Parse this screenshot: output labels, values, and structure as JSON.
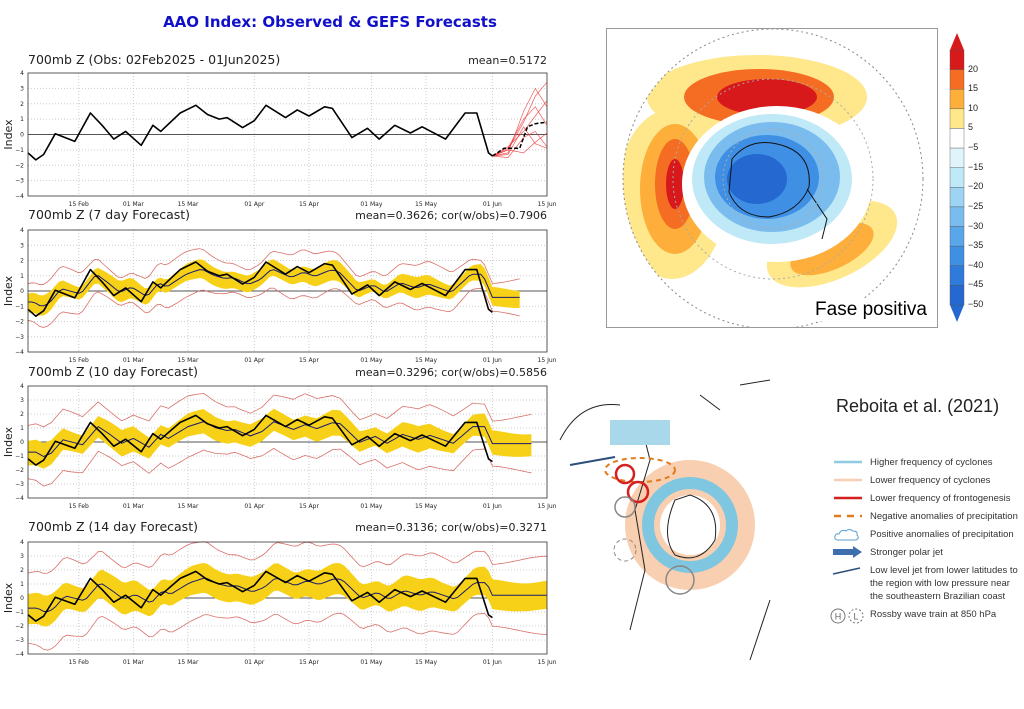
{
  "title": "AAO Index: Observed & GEFS Forecasts",
  "colors": {
    "title": "#1010c8",
    "observed": "#000000",
    "ens_mean": "#1a1a6e",
    "band": "#f7d117",
    "spread": "#d9706a",
    "member": "#ee3333"
  },
  "chart_data": [
    {
      "type": "line",
      "title": "700mb Z (Obs: 02Feb2025 - 01Jun2025)",
      "stat": "mean=0.5172",
      "ylabel": "Index",
      "ylim": [
        -4,
        4
      ],
      "xlim": [
        "2025-02-02",
        "2025-06-15"
      ],
      "grid": true,
      "yticks": [
        "4",
        "3",
        "2",
        "1",
        "0",
        "−1",
        "−2",
        "−3",
        "−4"
      ],
      "xticks": [
        [
          "2025-02-15",
          "15 Feb"
        ],
        [
          "2025-03-01",
          "01 Mar"
        ],
        [
          "2025-03-15",
          "15 Mar"
        ],
        [
          "2025-04-01",
          "01 Apr"
        ],
        [
          "2025-04-15",
          "15 Apr"
        ],
        [
          "2025-05-01",
          "01 May"
        ],
        [
          "2025-05-15",
          "15 May"
        ],
        [
          "2025-06-01",
          "01 Jun"
        ],
        [
          "2025-06-15",
          "15 Jun"
        ]
      ],
      "ensemble_mean": {
        "x": [
          "2025-06-01",
          "2025-06-04",
          "2025-06-08",
          "2025-06-10",
          "2025-06-12",
          "2025-06-15"
        ],
        "y": [
          -1.4,
          -0.9,
          -0.9,
          0.5,
          0.7,
          0.8
        ]
      },
      "members": [
        {
          "x": [
            "2025-06-01",
            "2025-06-05",
            "2025-06-09",
            "2025-06-12",
            "2025-06-15"
          ],
          "y": [
            -1.4,
            -1.0,
            0.8,
            2.5,
            3.4
          ]
        },
        {
          "x": [
            "2025-06-01",
            "2025-06-05",
            "2025-06-09",
            "2025-06-12",
            "2025-06-15"
          ],
          "y": [
            -1.4,
            -1.2,
            1.5,
            3.0,
            1.8
          ]
        },
        {
          "x": [
            "2025-06-01",
            "2025-06-05",
            "2025-06-09",
            "2025-06-12",
            "2025-06-15"
          ],
          "y": [
            -1.4,
            -0.8,
            0.2,
            1.2,
            2.2
          ]
        },
        {
          "x": [
            "2025-06-01",
            "2025-06-05",
            "2025-06-09",
            "2025-06-12",
            "2025-06-15"
          ],
          "y": [
            -1.4,
            -1.5,
            -0.2,
            0.2,
            -0.8
          ]
        },
        {
          "x": [
            "2025-06-01",
            "2025-06-05",
            "2025-06-09",
            "2025-06-12",
            "2025-06-15"
          ],
          "y": [
            -1.4,
            -1.0,
            -1.2,
            -0.5,
            0.1
          ]
        },
        {
          "x": [
            "2025-06-01",
            "2025-06-05",
            "2025-06-09",
            "2025-06-12",
            "2025-06-15"
          ],
          "y": [
            -1.4,
            -1.3,
            0.5,
            -0.6,
            -0.9
          ]
        },
        {
          "x": [
            "2025-06-01",
            "2025-06-05",
            "2025-06-09",
            "2025-06-12",
            "2025-06-15"
          ],
          "y": [
            -1.4,
            -0.9,
            1.0,
            1.8,
            0.6
          ]
        }
      ]
    },
    {
      "type": "line",
      "title": "700mb Z (7 day Forecast)",
      "stat": "mean=0.3626; cor(w/obs)=0.7906",
      "ylabel": "Index",
      "ylim": [
        -4,
        4
      ],
      "forecast_end": "2025-06-08",
      "band_halfwidth": 0.55,
      "spread_halfwidth": 1.2,
      "lag_days": 3
    },
    {
      "type": "line",
      "title": "700mb Z (10 day Forecast)",
      "stat": "mean=0.3296; cor(w/obs)=0.5856",
      "ylabel": "Index",
      "ylim": [
        -4,
        4
      ],
      "forecast_end": "2025-06-11",
      "band_halfwidth": 0.8,
      "spread_halfwidth": 1.9,
      "lag_days": 4
    },
    {
      "type": "line",
      "title": "700mb Z (14 day Forecast)",
      "stat": "mean=0.3136; cor(w/obs)=0.3271",
      "ylabel": "Index",
      "ylim": [
        -4,
        4
      ],
      "forecast_end": "2025-06-15",
      "band_halfwidth": 1.0,
      "spread_halfwidth": 2.5,
      "lag_days": 5
    }
  ],
  "observed": {
    "x": [
      "2025-02-02",
      "2025-02-04",
      "2025-02-06",
      "2025-02-09",
      "2025-02-14",
      "2025-02-18",
      "2025-02-21",
      "2025-02-24",
      "2025-02-27",
      "2025-03-03",
      "2025-03-06",
      "2025-03-08",
      "2025-03-13",
      "2025-03-17",
      "2025-03-20",
      "2025-03-23",
      "2025-03-25",
      "2025-03-29",
      "2025-04-01",
      "2025-04-04",
      "2025-04-09",
      "2025-04-12",
      "2025-04-15",
      "2025-04-19",
      "2025-04-21",
      "2025-04-26",
      "2025-04-30",
      "2025-05-03",
      "2025-05-07",
      "2025-05-11",
      "2025-05-14",
      "2025-05-20",
      "2025-05-25",
      "2025-05-28",
      "2025-05-31",
      "2025-06-01"
    ],
    "y": [
      -1.2,
      -1.65,
      -1.3,
      0.05,
      -0.45,
      1.4,
      0.6,
      -0.3,
      0.2,
      -0.7,
      0.6,
      0.2,
      1.4,
      1.9,
      1.3,
      1.0,
      1.1,
      0.45,
      0.9,
      1.9,
      1.1,
      1.6,
      1.2,
      1.8,
      1.7,
      -0.2,
      0.4,
      -0.3,
      0.6,
      0.1,
      0.5,
      -0.3,
      1.4,
      1.4,
      -1.2,
      -1.4
    ]
  },
  "map1": {
    "label": "Fase positiva",
    "colorbar_ticks": [
      "20",
      "15",
      "10",
      "5",
      "−5",
      "−15",
      "−20",
      "−25",
      "−30",
      "−35",
      "−40",
      "−45",
      "−50"
    ],
    "colorbar_colors": [
      "#d7191c",
      "#f46d23",
      "#fdae3b",
      "#fee88b",
      "#ffffff",
      "#e0f5fb",
      "#bfe9f7",
      "#9cd4f2",
      "#7bbcee",
      "#5aa6ea",
      "#3f8fe4",
      "#2f7bdc",
      "#2468d0"
    ]
  },
  "map2": {
    "citation": "Reboita et al. (2021)",
    "legend": [
      {
        "icon": "light-blue-line",
        "label": "Higher frequency of cyclones"
      },
      {
        "icon": "peach-line",
        "label": "Lower frequency of cyclones"
      },
      {
        "icon": "red-line",
        "label": "Lower frequency of frontogenesis"
      },
      {
        "icon": "orange-dashed-line",
        "label": "Negative anomalies of precipitation"
      },
      {
        "icon": "cloud-icon",
        "label": "Positive anomalies of precipitation"
      },
      {
        "icon": "arrow-icon",
        "label": "Stronger polar jet"
      },
      {
        "icon": "jet-line",
        "label": "Low level jet from lower latitudes to the region with low pressure near the southeastern Brazilian coast"
      },
      {
        "icon": "h-l-circles",
        "label": "Rossby wave train at 850 hPa"
      }
    ],
    "h": "H",
    "l": "L"
  }
}
